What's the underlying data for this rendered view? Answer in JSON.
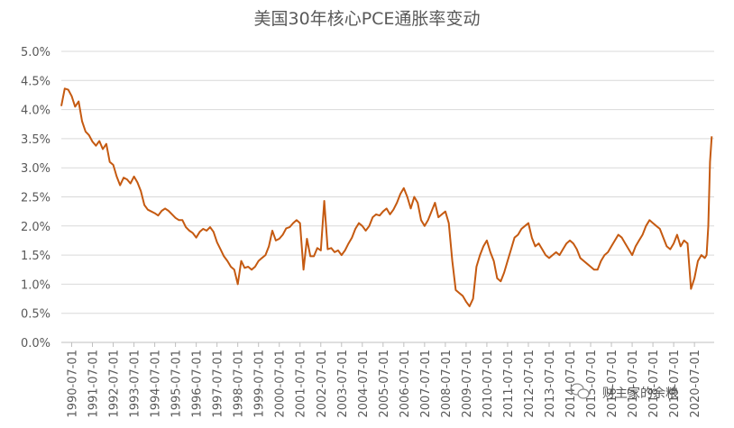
{
  "chart_data": {
    "type": "line",
    "title": "美国30年核心PCE通胀率变动",
    "xlabel": "",
    "ylabel": "",
    "ylim": [
      0,
      0.05
    ],
    "yticks": [
      "0.0%",
      "0.5%",
      "1.0%",
      "1.5%",
      "2.0%",
      "2.5%",
      "3.0%",
      "3.5%",
      "4.0%",
      "4.5%",
      "5.0%"
    ],
    "x_tick_labels": [
      "1990-07-01",
      "1991-07-01",
      "1992-07-01",
      "1993-07-01",
      "1994-07-01",
      "1995-07-01",
      "1996-07-01",
      "1997-07-01",
      "1998-07-01",
      "1999-07-01",
      "2000-07-01",
      "2001-07-01",
      "2002-07-01",
      "2003-07-01",
      "2004-07-01",
      "2005-07-01",
      "2006-07-01",
      "2007-07-01",
      "2008-07-01",
      "2009-07-01",
      "2010-07-01",
      "2011-07-01",
      "2012-07-01",
      "2013-07-01",
      "2014-07-01",
      "2015-07-01",
      "2016-07-01",
      "2017-07-01",
      "2018-07-01",
      "2019-07-01",
      "2020-07-01"
    ],
    "grid": "horizontal",
    "line_color": "#C55A11",
    "series": [
      {
        "values": [
          [
            "1990-01",
            0.0406
          ],
          [
            "1990-03",
            0.0436
          ],
          [
            "1990-05",
            0.0434
          ],
          [
            "1990-07",
            0.0423
          ],
          [
            "1990-09",
            0.0405
          ],
          [
            "1990-11",
            0.0414
          ],
          [
            "1991-01",
            0.038
          ],
          [
            "1991-03",
            0.0362
          ],
          [
            "1991-05",
            0.0356
          ],
          [
            "1991-07",
            0.0345
          ],
          [
            "1991-09",
            0.0338
          ],
          [
            "1991-11",
            0.0346
          ],
          [
            "1992-01",
            0.0332
          ],
          [
            "1992-03",
            0.0341
          ],
          [
            "1992-05",
            0.031
          ],
          [
            "1992-07",
            0.0305
          ],
          [
            "1992-09",
            0.0285
          ],
          [
            "1992-11",
            0.027
          ],
          [
            "1993-01",
            0.0283
          ],
          [
            "1993-03",
            0.028
          ],
          [
            "1993-05",
            0.0273
          ],
          [
            "1993-07",
            0.0285
          ],
          [
            "1993-09",
            0.0275
          ],
          [
            "1993-11",
            0.026
          ],
          [
            "1994-01",
            0.0236
          ],
          [
            "1994-03",
            0.0228
          ],
          [
            "1994-05",
            0.0225
          ],
          [
            "1994-07",
            0.0222
          ],
          [
            "1994-09",
            0.0218
          ],
          [
            "1994-11",
            0.0226
          ],
          [
            "1995-01",
            0.023
          ],
          [
            "1995-03",
            0.0226
          ],
          [
            "1995-05",
            0.022
          ],
          [
            "1995-07",
            0.0214
          ],
          [
            "1995-09",
            0.021
          ],
          [
            "1995-11",
            0.021
          ],
          [
            "1996-01",
            0.0198
          ],
          [
            "1996-03",
            0.0192
          ],
          [
            "1996-05",
            0.0188
          ],
          [
            "1996-07",
            0.018
          ],
          [
            "1996-09",
            0.019
          ],
          [
            "1996-11",
            0.0195
          ],
          [
            "1997-01",
            0.0192
          ],
          [
            "1997-03",
            0.0198
          ],
          [
            "1997-05",
            0.019
          ],
          [
            "1997-07",
            0.0172
          ],
          [
            "1997-09",
            0.016
          ],
          [
            "1997-11",
            0.0148
          ],
          [
            "1998-01",
            0.014
          ],
          [
            "1998-03",
            0.013
          ],
          [
            "1998-05",
            0.0125
          ],
          [
            "1998-07",
            0.01
          ],
          [
            "1998-09",
            0.014
          ],
          [
            "1998-11",
            0.0128
          ],
          [
            "1999-01",
            0.013
          ],
          [
            "1999-03",
            0.0125
          ],
          [
            "1999-05",
            0.013
          ],
          [
            "1999-07",
            0.014
          ],
          [
            "1999-09",
            0.0145
          ],
          [
            "1999-11",
            0.015
          ],
          [
            "2000-01",
            0.0165
          ],
          [
            "2000-03",
            0.0192
          ],
          [
            "2000-05",
            0.0175
          ],
          [
            "2000-07",
            0.0178
          ],
          [
            "2000-09",
            0.0185
          ],
          [
            "2000-11",
            0.0196
          ],
          [
            "2001-01",
            0.0198
          ],
          [
            "2001-03",
            0.0205
          ],
          [
            "2001-05",
            0.021
          ],
          [
            "2001-07",
            0.0205
          ],
          [
            "2001-09",
            0.0125
          ],
          [
            "2001-11",
            0.0178
          ],
          [
            "2002-01",
            0.0148
          ],
          [
            "2002-03",
            0.0148
          ],
          [
            "2002-05",
            0.0162
          ],
          [
            "2002-07",
            0.0158
          ],
          [
            "2002-09",
            0.0243
          ],
          [
            "2002-11",
            0.016
          ],
          [
            "2003-01",
            0.0162
          ],
          [
            "2003-03",
            0.0155
          ],
          [
            "2003-05",
            0.0158
          ],
          [
            "2003-07",
            0.015
          ],
          [
            "2003-09",
            0.0158
          ],
          [
            "2003-11",
            0.017
          ],
          [
            "2004-01",
            0.018
          ],
          [
            "2004-03",
            0.0195
          ],
          [
            "2004-05",
            0.0205
          ],
          [
            "2004-07",
            0.02
          ],
          [
            "2004-09",
            0.0192
          ],
          [
            "2004-11",
            0.02
          ],
          [
            "2005-01",
            0.0215
          ],
          [
            "2005-03",
            0.022
          ],
          [
            "2005-05",
            0.0218
          ],
          [
            "2005-07",
            0.0225
          ],
          [
            "2005-09",
            0.023
          ],
          [
            "2005-11",
            0.022
          ],
          [
            "2006-01",
            0.0228
          ],
          [
            "2006-03",
            0.024
          ],
          [
            "2006-05",
            0.0255
          ],
          [
            "2006-07",
            0.0265
          ],
          [
            "2006-09",
            0.025
          ],
          [
            "2006-11",
            0.023
          ],
          [
            "2007-01",
            0.025
          ],
          [
            "2007-03",
            0.024
          ],
          [
            "2007-05",
            0.021
          ],
          [
            "2007-07",
            0.02
          ],
          [
            "2007-09",
            0.021
          ],
          [
            "2007-11",
            0.0225
          ],
          [
            "2008-01",
            0.024
          ],
          [
            "2008-03",
            0.0215
          ],
          [
            "2008-05",
            0.022
          ],
          [
            "2008-07",
            0.0225
          ],
          [
            "2008-09",
            0.0205
          ],
          [
            "2008-11",
            0.014
          ],
          [
            "2009-01",
            0.009
          ],
          [
            "2009-03",
            0.0085
          ],
          [
            "2009-05",
            0.008
          ],
          [
            "2009-07",
            0.007
          ],
          [
            "2009-09",
            0.0062
          ],
          [
            "2009-11",
            0.0075
          ],
          [
            "2010-01",
            0.013
          ],
          [
            "2010-03",
            0.015
          ],
          [
            "2010-05",
            0.0165
          ],
          [
            "2010-07",
            0.0175
          ],
          [
            "2010-09",
            0.0155
          ],
          [
            "2010-11",
            0.014
          ],
          [
            "2011-01",
            0.011
          ],
          [
            "2011-03",
            0.0105
          ],
          [
            "2011-05",
            0.012
          ],
          [
            "2011-07",
            0.014
          ],
          [
            "2011-09",
            0.016
          ],
          [
            "2011-11",
            0.018
          ],
          [
            "2012-01",
            0.0185
          ],
          [
            "2012-03",
            0.0195
          ],
          [
            "2012-05",
            0.02
          ],
          [
            "2012-07",
            0.0205
          ],
          [
            "2012-09",
            0.018
          ],
          [
            "2012-11",
            0.0165
          ],
          [
            "2013-01",
            0.017
          ],
          [
            "2013-03",
            0.016
          ],
          [
            "2013-05",
            0.015
          ],
          [
            "2013-07",
            0.0145
          ],
          [
            "2013-09",
            0.015
          ],
          [
            "2013-11",
            0.0155
          ],
          [
            "2014-01",
            0.015
          ],
          [
            "2014-03",
            0.016
          ],
          [
            "2014-05",
            0.017
          ],
          [
            "2014-07",
            0.0175
          ],
          [
            "2014-09",
            0.017
          ],
          [
            "2014-11",
            0.016
          ],
          [
            "2015-01",
            0.0145
          ],
          [
            "2015-03",
            0.014
          ],
          [
            "2015-05",
            0.0135
          ],
          [
            "2015-07",
            0.013
          ],
          [
            "2015-09",
            0.0125
          ],
          [
            "2015-11",
            0.0125
          ],
          [
            "2016-01",
            0.014
          ],
          [
            "2016-03",
            0.015
          ],
          [
            "2016-05",
            0.0155
          ],
          [
            "2016-07",
            0.0165
          ],
          [
            "2016-09",
            0.0175
          ],
          [
            "2016-11",
            0.0185
          ],
          [
            "2017-01",
            0.018
          ],
          [
            "2017-03",
            0.017
          ],
          [
            "2017-05",
            0.016
          ],
          [
            "2017-07",
            0.015
          ],
          [
            "2017-09",
            0.0165
          ],
          [
            "2017-11",
            0.0175
          ],
          [
            "2018-01",
            0.0185
          ],
          [
            "2018-03",
            0.02
          ],
          [
            "2018-05",
            0.021
          ],
          [
            "2018-07",
            0.0205
          ],
          [
            "2018-09",
            0.02
          ],
          [
            "2018-11",
            0.0195
          ],
          [
            "2019-01",
            0.018
          ],
          [
            "2019-03",
            0.0165
          ],
          [
            "2019-05",
            0.016
          ],
          [
            "2019-07",
            0.017
          ],
          [
            "2019-09",
            0.0185
          ],
          [
            "2019-11",
            0.0165
          ],
          [
            "2020-01",
            0.0175
          ],
          [
            "2020-03",
            0.017
          ],
          [
            "2020-05",
            0.0092
          ],
          [
            "2020-07",
            0.011
          ],
          [
            "2020-09",
            0.014
          ],
          [
            "2020-11",
            0.015
          ],
          [
            "2021-01",
            0.0145
          ],
          [
            "2021-02",
            0.015
          ],
          [
            "2021-03",
            0.02
          ],
          [
            "2021-04",
            0.031
          ],
          [
            "2021-05",
            0.0354
          ]
        ]
      }
    ]
  },
  "watermark": {
    "text": "财主家的余粮",
    "icon": "wechat-icon"
  }
}
